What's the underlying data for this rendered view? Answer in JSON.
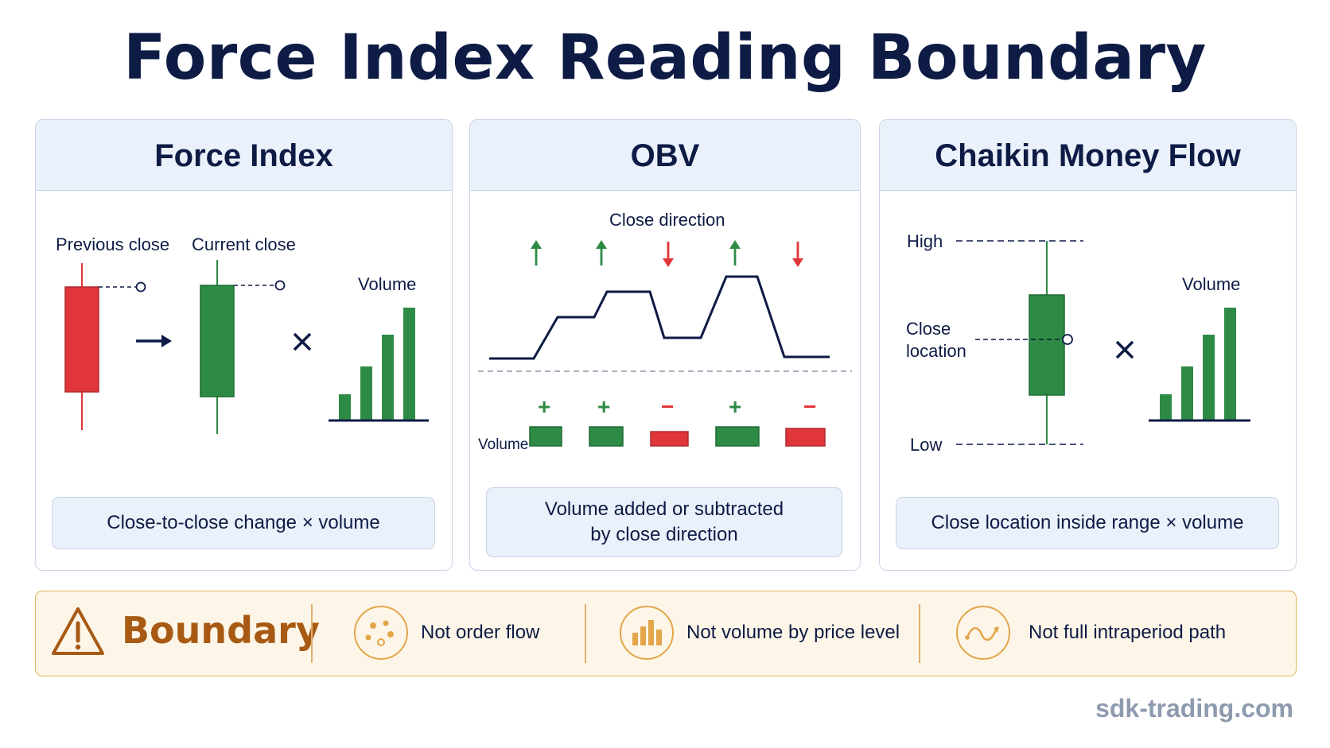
{
  "title": "Force Index Reading Boundary",
  "colors": {
    "navy": "#0d1b45",
    "green": "#2e8b45",
    "red": "#e0353a",
    "amber": "#a85a14"
  },
  "panels": {
    "force_index": {
      "heading": "Force Index",
      "prev_close_label": "Previous close",
      "curr_close_label": "Current close",
      "volume_label": "Volume",
      "caption": "Close-to-close change × volume"
    },
    "obv": {
      "heading": "OBV",
      "close_direction_label": "Close direction",
      "directions": [
        "up",
        "up",
        "down",
        "up",
        "down"
      ],
      "signs": [
        "+",
        "+",
        "−",
        "+",
        "−"
      ],
      "volume_label": "Volume",
      "caption_line1": "Volume added or subtracted",
      "caption_line2": "by close direction"
    },
    "cmf": {
      "heading": "Chaikin Money Flow",
      "high_label": "High",
      "close_label_1": "Close",
      "close_label_2": "location",
      "low_label": "Low",
      "volume_label": "Volume",
      "caption": "Close location inside range × volume"
    }
  },
  "boundary": {
    "title": "Boundary",
    "items": [
      {
        "label": "Not order flow",
        "icon": "scatter-dots-icon"
      },
      {
        "label": "Not volume by price level",
        "icon": "bar-chart-icon"
      },
      {
        "label": "Not full intraperiod path",
        "icon": "path-curve-icon"
      }
    ]
  },
  "footer": "sdk-trading.com"
}
